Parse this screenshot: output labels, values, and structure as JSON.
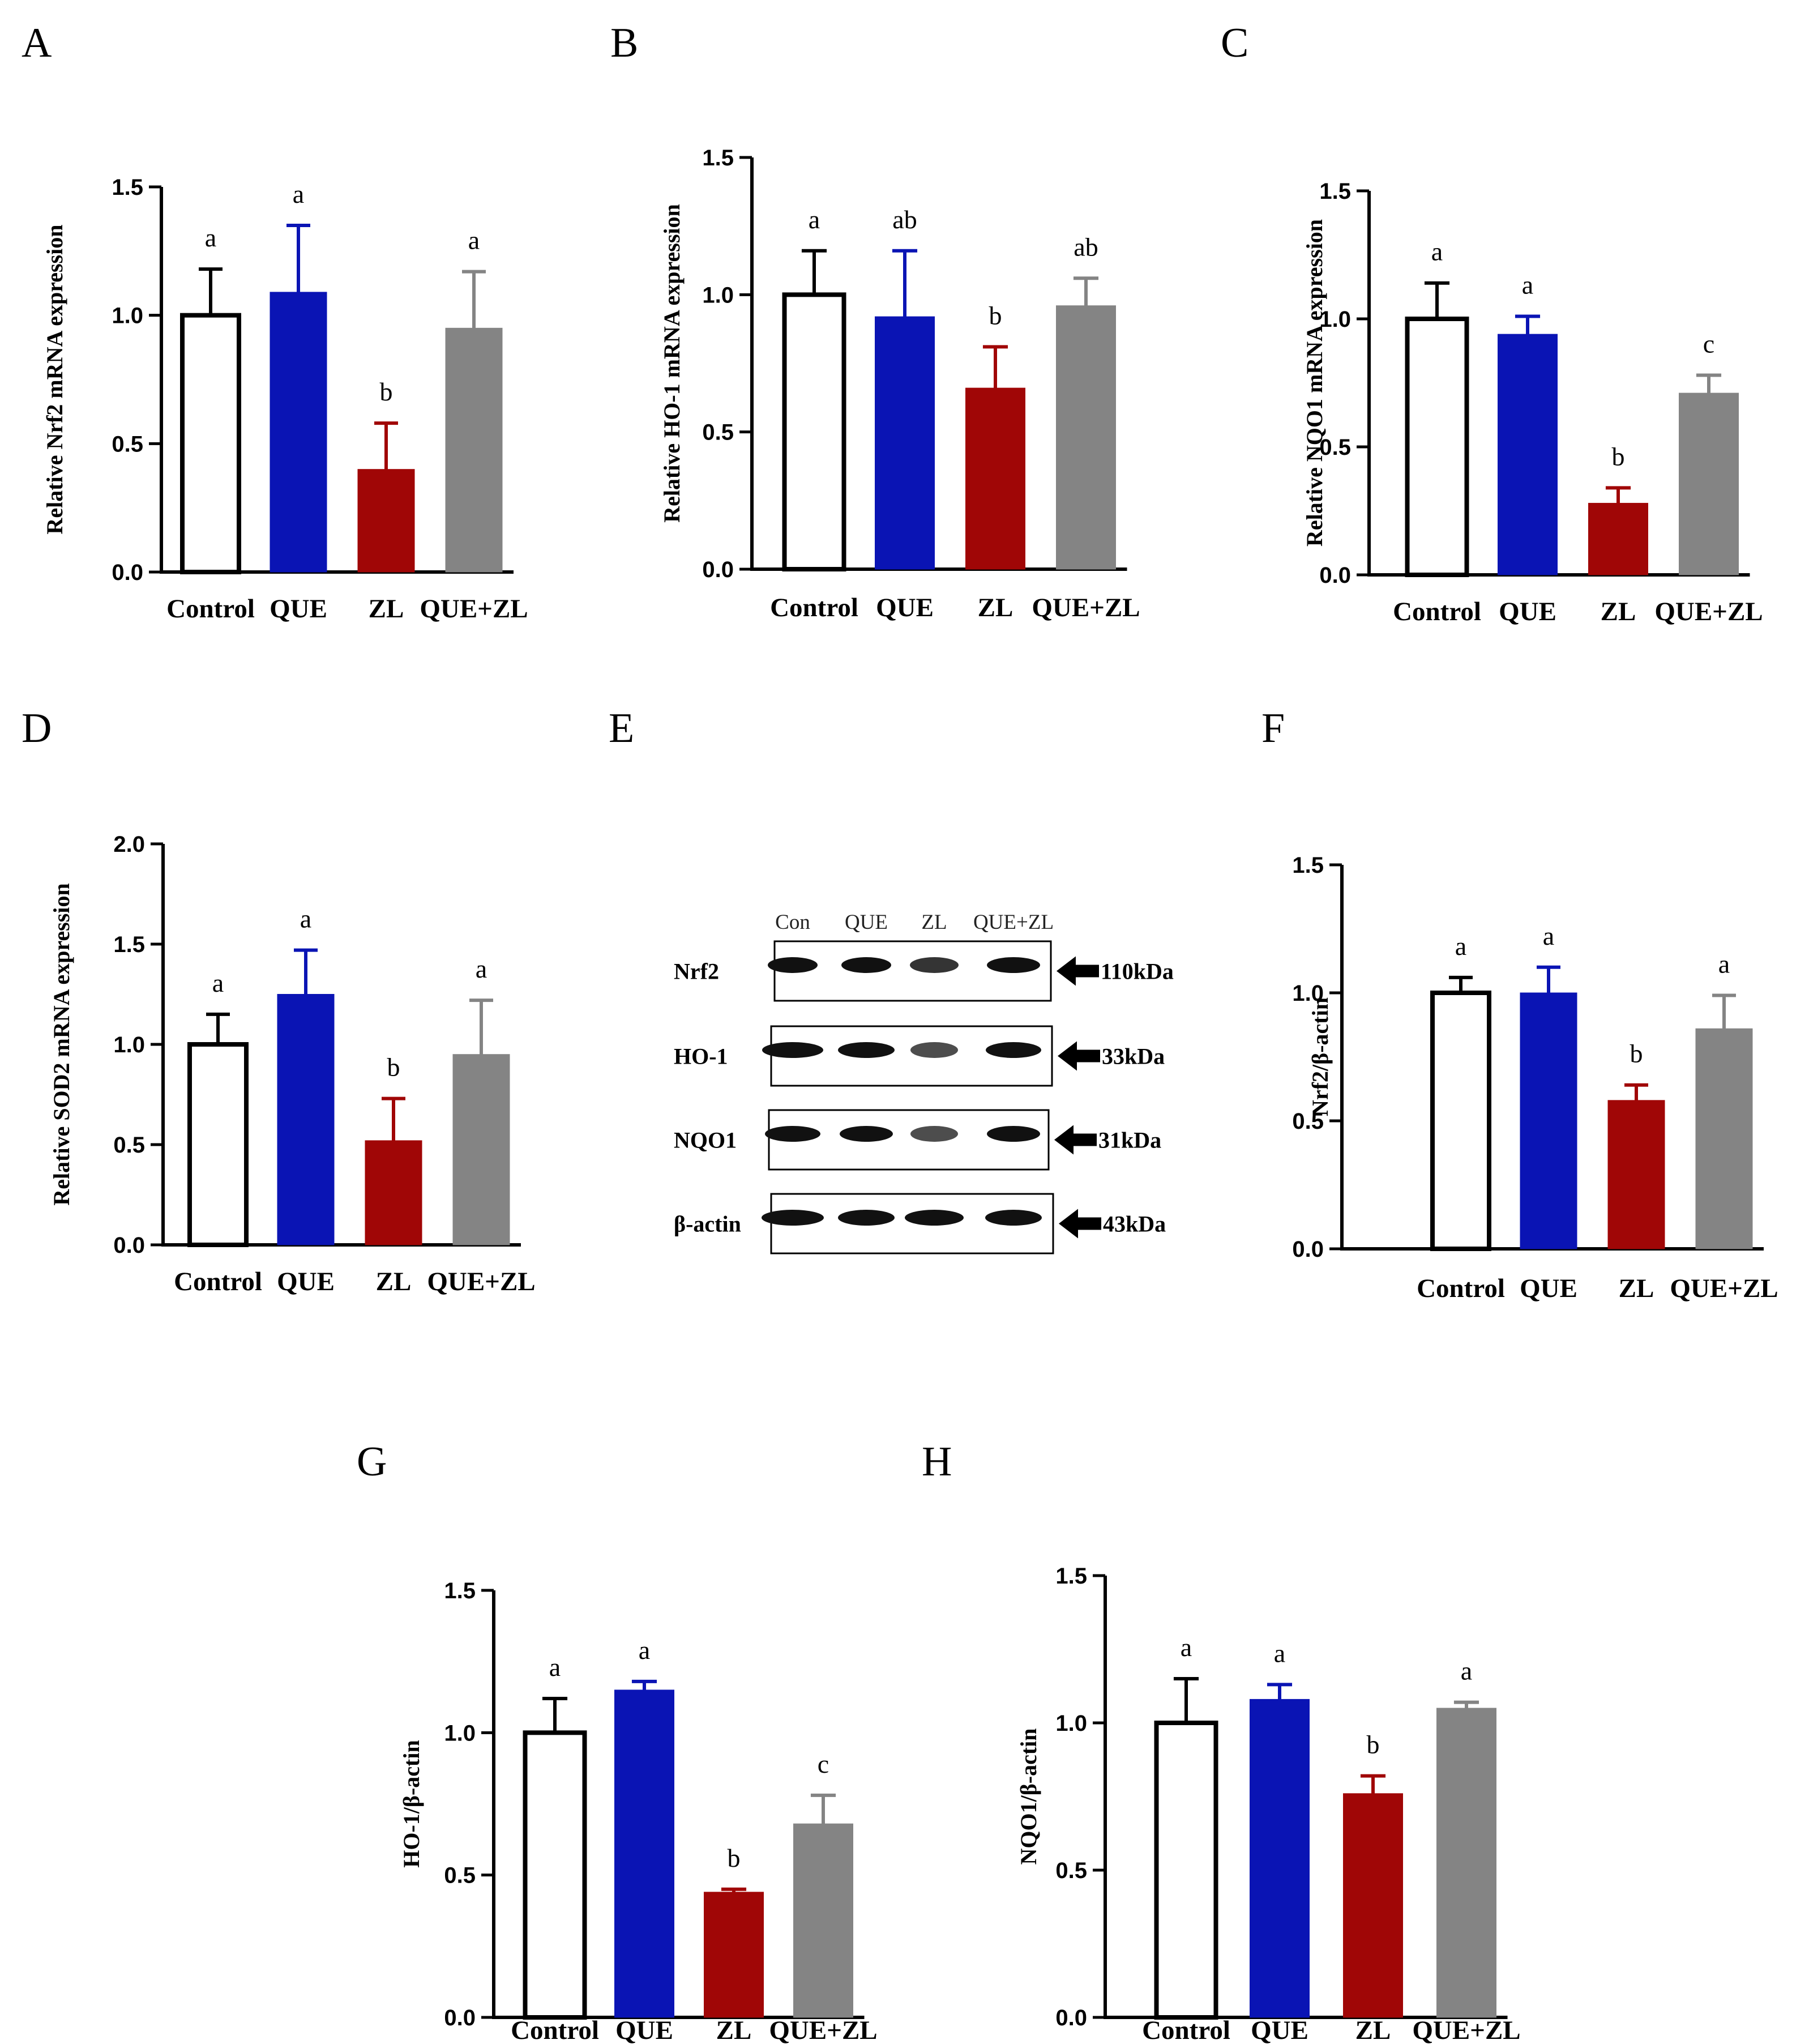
{
  "colors": {
    "control": "#ffffff",
    "que": "#0a14b4",
    "zl": "#a00606",
    "que_zl": "#848484",
    "axis": "#000000"
  },
  "chart_data": [
    {
      "panel": "A",
      "type": "bar",
      "ylabel": "Relative Nrf2 mRNA expression",
      "categories": [
        "Control",
        "QUE",
        "ZL",
        "QUE+ZL"
      ],
      "values": [
        1.0,
        1.09,
        0.4,
        0.95
      ],
      "errors": [
        0.18,
        0.26,
        0.18,
        0.22
      ],
      "letters": [
        "a",
        "a",
        "b",
        "a"
      ],
      "ylim": [
        0,
        1.5
      ],
      "yticks": [
        "0.0",
        "0.5",
        "1.0",
        "1.5"
      ]
    },
    {
      "panel": "B",
      "type": "bar",
      "ylabel": "Relative HO-1 mRNA expression",
      "categories": [
        "Control",
        "QUE",
        "ZL",
        "QUE+ZL"
      ],
      "values": [
        1.0,
        0.92,
        0.66,
        0.96
      ],
      "errors": [
        0.16,
        0.24,
        0.15,
        0.1
      ],
      "letters": [
        "a",
        "ab",
        "b",
        "ab"
      ],
      "ylim": [
        0,
        1.5
      ],
      "yticks": [
        "0.0",
        "0.5",
        "1.0",
        "1.5"
      ]
    },
    {
      "panel": "C",
      "type": "bar",
      "ylabel": "Relative NQO1 mRNA expression",
      "categories": [
        "Control",
        "QUE",
        "ZL",
        "QUE+ZL"
      ],
      "values": [
        1.0,
        0.94,
        0.28,
        0.71
      ],
      "errors": [
        0.14,
        0.07,
        0.06,
        0.07
      ],
      "letters": [
        "a",
        "a",
        "b",
        "c"
      ],
      "ylim": [
        0,
        1.5
      ],
      "yticks": [
        "0.0",
        "0.5",
        "1.0",
        "1.5"
      ]
    },
    {
      "panel": "D",
      "type": "bar",
      "ylabel": "Relative SOD2 mRNA expression",
      "categories": [
        "Control",
        "QUE",
        "ZL",
        "QUE+ZL"
      ],
      "values": [
        1.0,
        1.25,
        0.52,
        0.95
      ],
      "errors": [
        0.15,
        0.22,
        0.21,
        0.27
      ],
      "letters": [
        "a",
        "a",
        "b",
        "a"
      ],
      "ylim": [
        0,
        2.0
      ],
      "yticks": [
        "0.0",
        "0.5",
        "1.0",
        "1.5",
        "2.0"
      ]
    },
    {
      "panel": "F",
      "type": "bar",
      "ylabel": "Nrf2/β-actin",
      "categories": [
        "Control",
        "QUE",
        "ZL",
        "QUE+ZL"
      ],
      "values": [
        1.0,
        1.0,
        0.58,
        0.86
      ],
      "errors": [
        0.06,
        0.1,
        0.06,
        0.13
      ],
      "letters": [
        "a",
        "a",
        "b",
        "a"
      ],
      "ylim": [
        0,
        1.5
      ],
      "yticks": [
        "0.0",
        "0.5",
        "1.0",
        "1.5"
      ]
    },
    {
      "panel": "G",
      "type": "bar",
      "ylabel": "HO-1/β-actin",
      "categories": [
        "Control",
        "QUE",
        "ZL",
        "QUE+ZL"
      ],
      "values": [
        1.0,
        1.15,
        0.44,
        0.68
      ],
      "errors": [
        0.12,
        0.03,
        0.01,
        0.1
      ],
      "letters": [
        "a",
        "a",
        "b",
        "c"
      ],
      "ylim": [
        0,
        1.5
      ],
      "yticks": [
        "0.0",
        "0.5",
        "1.0",
        "1.5"
      ]
    },
    {
      "panel": "H",
      "type": "bar",
      "ylabel": "NQO1/β-actin",
      "categories": [
        "Control",
        "QUE",
        "ZL",
        "QUE+ZL"
      ],
      "values": [
        1.0,
        1.08,
        0.76,
        1.05
      ],
      "errors": [
        0.15,
        0.05,
        0.06,
        0.02
      ],
      "letters": [
        "a",
        "a",
        "b",
        "a"
      ],
      "ylim": [
        0,
        1.5
      ],
      "yticks": [
        "0.0",
        "0.5",
        "1.0",
        "1.5"
      ]
    }
  ],
  "blot": {
    "panel": "E",
    "columns": [
      "Con",
      "QUE",
      "ZL",
      "QUE+ZL"
    ],
    "rows": [
      {
        "name": "Nrf2",
        "kda": "110kDa"
      },
      {
        "name": "HO-1",
        "kda": "33kDa"
      },
      {
        "name": "NQO1",
        "kda": "31kDa"
      },
      {
        "name": "β-actin",
        "kda": "43kDa"
      }
    ]
  }
}
